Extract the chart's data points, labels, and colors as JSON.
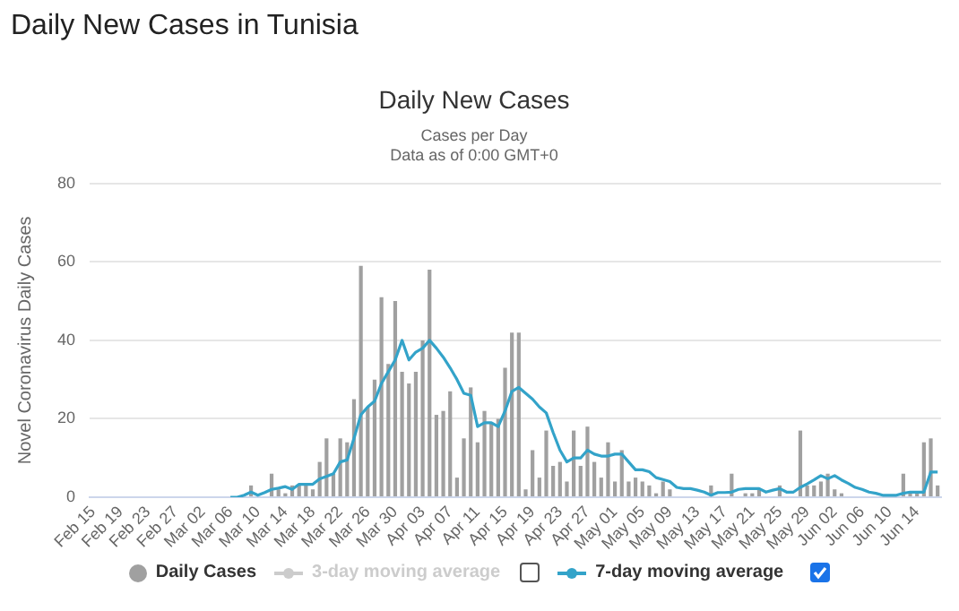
{
  "chart_data": {
    "type": "bar",
    "title": "Daily New Cases",
    "subtitle": "Cases per Day\nData as of 0:00 GMT+0",
    "ylabel": "Novel Coronavirus Daily Cases",
    "annotations": [
      "Daily New Cases in Tunisia"
    ],
    "categories": [
      "Feb 15",
      null,
      null,
      null,
      "Feb 19",
      null,
      null,
      null,
      "Feb 23",
      null,
      null,
      null,
      "Feb 27",
      null,
      null,
      null,
      "Mar 02",
      null,
      null,
      null,
      "Mar 06",
      null,
      null,
      null,
      "Mar 10",
      null,
      null,
      null,
      "Mar 14",
      null,
      null,
      null,
      "Mar 18",
      null,
      null,
      null,
      "Mar 22",
      null,
      null,
      null,
      "Mar 26",
      null,
      null,
      null,
      "Mar 30",
      null,
      null,
      null,
      "Apr 03",
      null,
      null,
      null,
      "Apr 07",
      null,
      null,
      null,
      "Apr 11",
      null,
      null,
      null,
      "Apr 15",
      null,
      null,
      null,
      "Apr 19",
      null,
      null,
      null,
      "Apr 23",
      null,
      null,
      null,
      "Apr 27",
      null,
      null,
      null,
      "May 01",
      null,
      null,
      null,
      "May 05",
      null,
      null,
      null,
      "May 09",
      null,
      null,
      null,
      "May 13",
      null,
      null,
      null,
      "May 17",
      null,
      null,
      null,
      "May 21",
      null,
      null,
      null,
      "May 25",
      null,
      null,
      null,
      "May 29",
      null,
      null,
      null,
      "Jun 02",
      null,
      null,
      null,
      "Jun 06",
      null,
      null,
      null,
      "Jun 10",
      null,
      null,
      null,
      "Jun 14",
      null,
      null,
      null
    ],
    "series": [
      {
        "name": "Daily Cases",
        "color": "#a0a0a0",
        "values": [
          0,
          0,
          0,
          0,
          0,
          0,
          0,
          0,
          0,
          0,
          0,
          0,
          0,
          0,
          0,
          0,
          0,
          0,
          0,
          0,
          0,
          0,
          0,
          3,
          0,
          0,
          6,
          2,
          1,
          3,
          3,
          3,
          2,
          9,
          15,
          6,
          15,
          14,
          25,
          59,
          23,
          30,
          51,
          34,
          50,
          32,
          29,
          32,
          40,
          58,
          21,
          22,
          27,
          5,
          15,
          28,
          14,
          22,
          19,
          20,
          33,
          42,
          42,
          2,
          12,
          5,
          17,
          8,
          9,
          4,
          17,
          8,
          18,
          9,
          5,
          14,
          4,
          12,
          4,
          5,
          4,
          3,
          1,
          4,
          2,
          0,
          0,
          0,
          0,
          0,
          3,
          0,
          0,
          6,
          0,
          1,
          1,
          2,
          0,
          0,
          3,
          0,
          0,
          17,
          3,
          3,
          4,
          6,
          2,
          1,
          0,
          0,
          0,
          0,
          0,
          0,
          0,
          0,
          6,
          1,
          1,
          14,
          15,
          3
        ]
      },
      {
        "name": "3-day moving average",
        "type": "line",
        "color": "#cccccc",
        "values": [
          null,
          null,
          null,
          null,
          null,
          null,
          null,
          null,
          null,
          null,
          null,
          null,
          null,
          null,
          null,
          null,
          null,
          null,
          null,
          null,
          null,
          null,
          null,
          null,
          null,
          null,
          null,
          null,
          null,
          null,
          null,
          null,
          null,
          null,
          null,
          null,
          null,
          null,
          null,
          null,
          null,
          null,
          null,
          null,
          null,
          null,
          null,
          null,
          null,
          null,
          null,
          null,
          null,
          null,
          null,
          null,
          null,
          null,
          null,
          null,
          null,
          null,
          null,
          null,
          null,
          null,
          null,
          null,
          null,
          null,
          null,
          null,
          null,
          null,
          null,
          null,
          null,
          null,
          null,
          null,
          null,
          null,
          null,
          null,
          null,
          null,
          null,
          null,
          null,
          null,
          null,
          null,
          null,
          null,
          null,
          null,
          null,
          null,
          null,
          null,
          null,
          null,
          null,
          null,
          null,
          null,
          null,
          null,
          null,
          null,
          null,
          null,
          null,
          null,
          null,
          null,
          null,
          null,
          null,
          null,
          null,
          null,
          null,
          null
        ]
      },
      {
        "name": "7-day moving average",
        "type": "line",
        "color": "#33a3c9",
        "values": [
          null,
          null,
          null,
          null,
          null,
          null,
          null,
          null,
          null,
          null,
          null,
          null,
          null,
          null,
          null,
          null,
          null,
          null,
          null,
          null,
          0,
          0,
          0.5,
          1.3,
          0.5,
          1.2,
          2,
          2.3,
          2.7,
          2,
          3.3,
          3.3,
          3.3,
          4.7,
          5.3,
          6,
          9,
          9.5,
          15,
          21,
          23,
          24.5,
          29,
          32,
          35,
          40,
          35,
          37,
          38,
          40,
          38,
          35.7,
          33,
          30,
          26.5,
          26,
          18,
          19,
          19,
          18,
          22,
          27,
          28,
          26.5,
          25,
          23,
          21.5,
          16.5,
          12,
          9,
          10,
          10,
          12,
          11,
          10.5,
          10.5,
          11,
          11,
          9,
          7,
          7,
          6.5,
          5,
          4.5,
          4,
          2.5,
          2.2,
          2.2,
          1.8,
          1.3,
          0.5,
          1.2,
          1.2,
          1.3,
          2,
          2.2,
          2.2,
          2.2,
          1.3,
          1.8,
          2.2,
          1.3,
          1.3,
          2.5,
          3.4,
          4.4,
          5.5,
          4.7,
          5.5,
          4.4,
          3.5,
          2.5,
          2,
          1.3,
          1,
          0.5,
          0.5,
          0.5,
          1,
          1.3,
          1.3,
          1.3,
          6.4,
          6.4
        ]
      }
    ],
    "ylim": [
      0,
      80
    ],
    "yticks": [
      0,
      20,
      40,
      60,
      80
    ],
    "grid": "y",
    "legend": "bottom",
    "marker": "none"
  }
}
